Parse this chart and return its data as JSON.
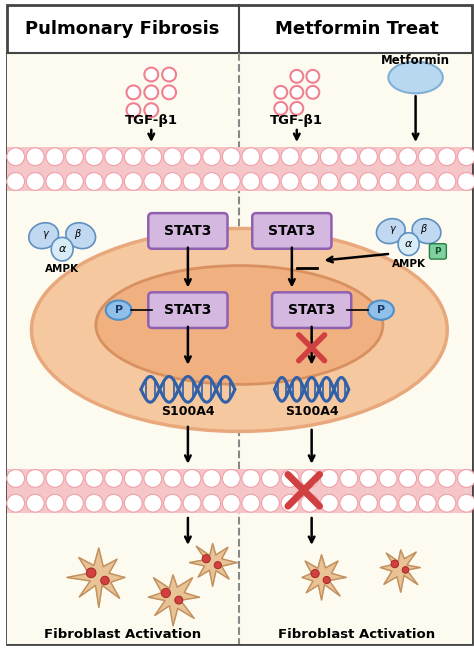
{
  "title_left": "Pulmonary Fibrosis",
  "title_right": "Metformin Treat",
  "label_tgf": "TGF-β1",
  "label_metformin": "Metformin",
  "label_stat3": "STAT3",
  "label_ampk": "AMPK",
  "label_s100a4": "S100A4",
  "label_p": "P",
  "label_fibroblast_left": "Fibroblast Activation",
  "label_fibroblast_right": "Fibroblast Activation",
  "color_membrane_bg": "#F5C5C8",
  "color_membrane_circle_edge": "#F0A0A8",
  "color_membrane_circle_face": "#FFFFFF",
  "color_membrane_link": "#E8D0D2",
  "color_cell_bg": "#F5C8A0",
  "color_cell_edge": "#E8A87C",
  "color_nucleus_bg": "#F0B080",
  "color_nucleus_edge": "#D89060",
  "color_stat3_box": "#D4B8E0",
  "color_stat3_border": "#9060B0",
  "color_ampk_blue": "#B8D8F0",
  "color_p_blue": "#90C0E8",
  "color_p_border": "#5090C8",
  "color_dna_blue": "#3060A8",
  "color_tgf_pink": "#F08090",
  "color_metformin_blue": "#B8D8F0",
  "color_metformin_border": "#80B0D8",
  "color_red_cross": "#D04040",
  "color_fibroblast_tan": "#E8C090",
  "color_fibroblast_edge": "#C09060",
  "color_fibroblast_red": "#D04040",
  "color_arrow": "#111111",
  "color_background": "#FFFFFF",
  "color_border": "#444444",
  "color_bg_left": "#FFFEF5",
  "color_bg_right": "#FFFEF5",
  "figsize": [
    4.74,
    6.49
  ],
  "dpi": 100
}
